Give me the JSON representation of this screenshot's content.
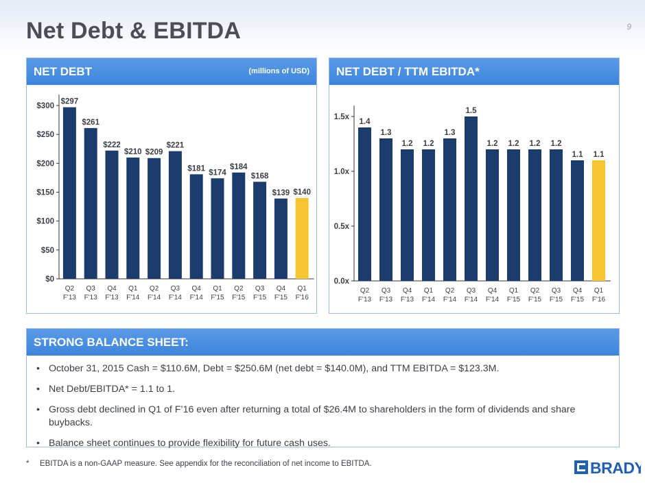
{
  "page": {
    "title": "Net Debt & EBITDA",
    "number": "9"
  },
  "colors": {
    "bar": "#1c3c6e",
    "highlight": "#f7c531",
    "header": "#4a8fe0",
    "border": "#9bbbe6"
  },
  "net_debt_panel": {
    "title": "NET DEBT",
    "note": "(millions of USD)"
  },
  "ratio_panel": {
    "title": "NET DEBT / TTM EBITDA*"
  },
  "chart_data": [
    {
      "type": "bar",
      "categories": [
        [
          "Q2",
          "F'13"
        ],
        [
          "Q3",
          "F'13"
        ],
        [
          "Q4",
          "F'13"
        ],
        [
          "Q1",
          "F'14"
        ],
        [
          "Q2",
          "F'14"
        ],
        [
          "Q3",
          "F'14"
        ],
        [
          "Q4",
          "F'14"
        ],
        [
          "Q1",
          "F'15"
        ],
        [
          "Q2",
          "F'15"
        ],
        [
          "Q3",
          "F'15"
        ],
        [
          "Q4",
          "F'15"
        ],
        [
          "Q1",
          "F'16"
        ]
      ],
      "values": [
        297,
        261,
        222,
        210,
        209,
        221,
        181,
        174,
        184,
        168,
        139,
        140
      ],
      "value_labels": [
        "$297",
        "$261",
        "$222",
        "$210",
        "$209",
        "$221",
        "$181",
        "$174",
        "$184",
        "$168",
        "$139",
        "$140"
      ],
      "highlight_index": 11,
      "ylim": [
        0,
        300
      ],
      "yticks": [
        0,
        50,
        100,
        150,
        200,
        250,
        300
      ],
      "ytick_labels": [
        "$0",
        "$50",
        "$100",
        "$150",
        "$200",
        "$250",
        "$300"
      ],
      "grid": false
    },
    {
      "type": "bar",
      "categories": [
        [
          "Q2",
          "F'13"
        ],
        [
          "Q3",
          "F'13"
        ],
        [
          "Q4",
          "F'13"
        ],
        [
          "Q1",
          "F'14"
        ],
        [
          "Q2",
          "F'14"
        ],
        [
          "Q3",
          "F'14"
        ],
        [
          "Q4",
          "F'14"
        ],
        [
          "Q1",
          "F'15"
        ],
        [
          "Q2",
          "F'15"
        ],
        [
          "Q3",
          "F'15"
        ],
        [
          "Q4",
          "F'15"
        ],
        [
          "Q1",
          "F'16"
        ]
      ],
      "values": [
        1.4,
        1.3,
        1.2,
        1.2,
        1.3,
        1.5,
        1.2,
        1.2,
        1.2,
        1.2,
        1.1,
        1.1
      ],
      "value_labels": [
        "1.4",
        "1.3",
        "1.2",
        "1.2",
        "1.3",
        "1.5",
        "1.2",
        "1.2",
        "1.2",
        "1.2",
        "1.1",
        "1.1"
      ],
      "highlight_index": 11,
      "ylim": [
        0,
        1.5
      ],
      "yticks": [
        0,
        0.5,
        1.0,
        1.5
      ],
      "ytick_labels": [
        "0.0x",
        "0.5x",
        "1.0x",
        "1.5x"
      ],
      "grid": false
    }
  ],
  "balance_sheet": {
    "title": "STRONG BALANCE SHEET:",
    "bullet_char": "•",
    "bullets": [
      "October 31, 2015 Cash = $110.6M, Debt = $250.6M (net debt = $140.0M), and TTM EBITDA = $123.3M.",
      "Net Debt/EBITDA* = 1.1 to 1.",
      "Gross debt declined in Q1 of F’16 even after returning a total of $26.4M to shareholders in the form of dividends and share buybacks.",
      "Balance sheet continues to provide flexibility for future cash uses."
    ]
  },
  "footnote": {
    "marker": "*",
    "text": "EBITDA is a non-GAAP measure.  See appendix for the reconciliation of net income to EBITDA."
  },
  "logo": {
    "text": "BRADY",
    "icon": "brady-logo-icon"
  }
}
